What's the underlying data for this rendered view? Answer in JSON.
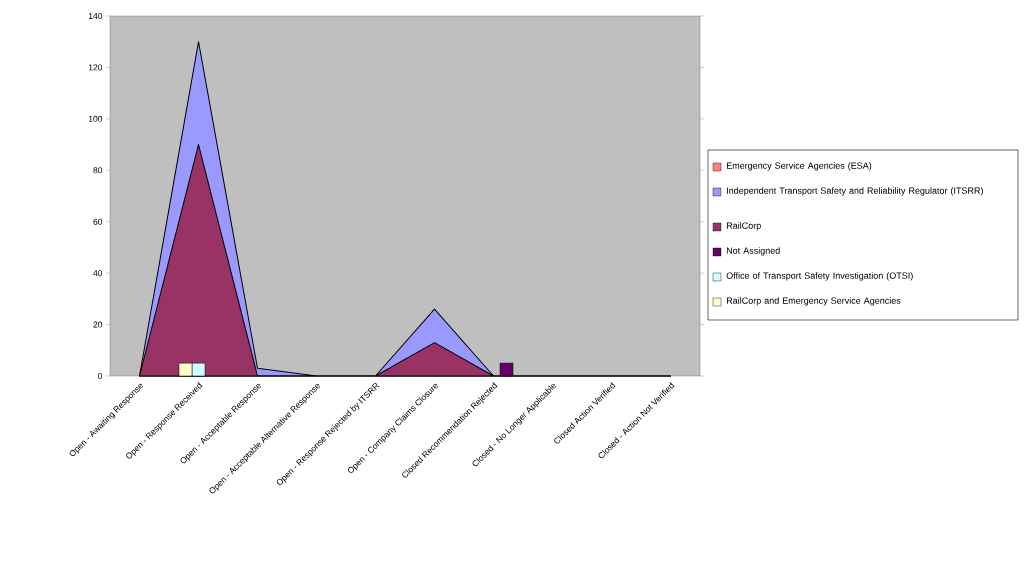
{
  "chart_data": {
    "type": "area",
    "legend": "right",
    "categories": [
      "Open - Awaiting Response",
      "Open - Response Received",
      "Open - Acceptable Response",
      "Open - Acceptable Alternative Response",
      "Open - Response Rejected by ITSRR",
      "Open - Company Claims Closure",
      "Closed Recommendation Rejected",
      "Closed - No Longer Applicable",
      "Closed Action Verified",
      "Closed - Action Not Verified"
    ],
    "ylim": [
      0,
      140
    ],
    "yticks": [
      0,
      20,
      40,
      60,
      80,
      100,
      120,
      140
    ],
    "series": [
      {
        "name": "Emergency Service Agencies (ESA)",
        "color": "#ff8080",
        "values": [
          null,
          null,
          null,
          null,
          null,
          null,
          null,
          null,
          null,
          null
        ]
      },
      {
        "name": "Independent Transport Safety and Reliability Regulator (ITSRR)",
        "color": "#9999ff",
        "values": [
          0,
          130,
          3,
          0,
          0,
          26,
          0,
          0,
          0,
          0
        ]
      },
      {
        "name": "RailCorp",
        "color": "#993366",
        "values": [
          0,
          90,
          0,
          0,
          0,
          13,
          0,
          0,
          0,
          0
        ]
      },
      {
        "name": "Not Assigned",
        "type": "bar",
        "color": "#660066",
        "values": [
          null,
          null,
          null,
          null,
          null,
          null,
          5,
          null,
          null,
          null
        ]
      },
      {
        "name": "Office of Transport Safety Investigation (OTSI)",
        "type": "bar",
        "color": "#ccffff",
        "values": [
          null,
          5,
          null,
          null,
          null,
          null,
          null,
          null,
          null,
          null
        ]
      },
      {
        "name": "RailCorp and Emergency Service Agencies",
        "type": "bar",
        "color": "#ffffcc",
        "values": [
          null,
          5,
          null,
          null,
          null,
          null,
          null,
          null,
          null,
          null
        ]
      }
    ]
  }
}
